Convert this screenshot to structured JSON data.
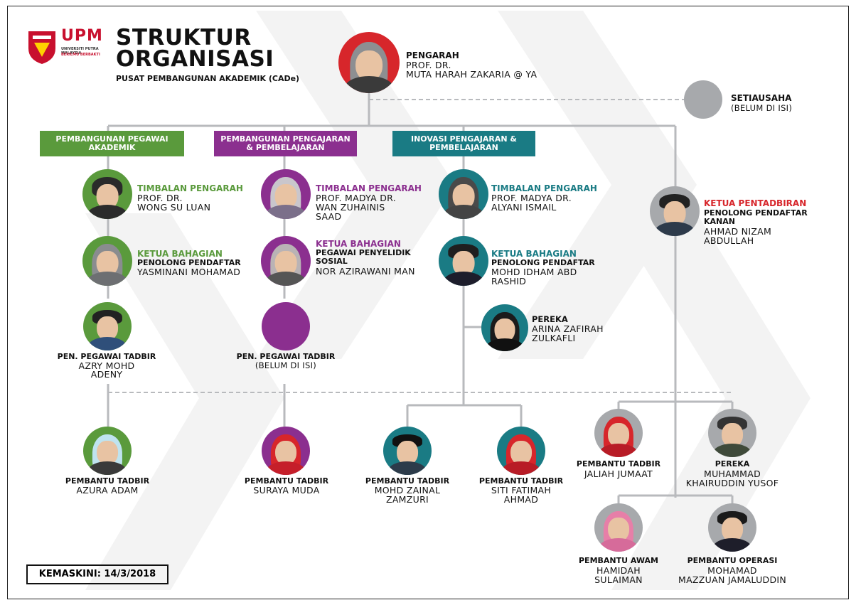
{
  "header": {
    "title_line1": "STRUKTUR",
    "title_line2": "ORGANISASI",
    "subtitle": "PUSAT PEMBANGUNAN AKADEMIK (CADe)",
    "logo_text": "UPM",
    "logo_sub1": "UNIVERSITI PUTRA MALAYSIA",
    "logo_sub2": "BERILMU BERBAKTI"
  },
  "colors": {
    "green": "#5a9a3c",
    "purple": "#8b2f8f",
    "teal": "#1a7b84",
    "red": "#d7262b",
    "grey": "#a7a9ac",
    "line": "#b8babd"
  },
  "director": {
    "role": "PENGARAH",
    "name1": "PROF. DR.",
    "name2": "MUTA HARAH ZAKARIA @ YA"
  },
  "secretary": {
    "role": "SETIAUSAHA",
    "name": "(BELUM DI ISI)"
  },
  "divisions": [
    {
      "header": "PEMBANGUNAN PEGAWAI AKADEMIK",
      "deputy": {
        "role": "TIMBALAN PENGARAH",
        "n1": "PROF. DR.",
        "n2": "WONG SU LUAN"
      },
      "head": {
        "role": "KETUA BAHAGIAN",
        "post": "PENOLONG PENDAFTAR",
        "n1": "YASMINANI MOHAMAD"
      },
      "officer": {
        "post": "PEN. PEGAWAI TADBIR",
        "n1": "AZRY MOHD",
        "n2": "ADENY"
      }
    },
    {
      "header": "PEMBANGUNAN PENGAJARAN & PEMBELAJARAN",
      "deputy": {
        "role": "TIMBALAN PENGARAH",
        "n1": "PROF. MADYA DR.",
        "n2": "WAN ZUHAINIS",
        "n3": "SAAD"
      },
      "head": {
        "role": "KETUA BAHAGIAN",
        "post1": "PEGAWAI PENYELIDIK",
        "post2": "SOSIAL",
        "n1": "NOR AZIRAWANI MAN"
      },
      "officer": {
        "post": "PEN. PEGAWAI TADBIR",
        "n1": "(BELUM DI ISI)"
      }
    },
    {
      "header": "INOVASI PENGAJARAN & PEMBELAJARAN",
      "deputy": {
        "role": "TIMBALAN PENGARAH",
        "n1": "PROF. MADYA DR.",
        "n2": "ALYANI ISMAIL"
      },
      "head": {
        "role": "KETUA BAHAGIAN",
        "post": "PENOLONG PENDAFTAR",
        "n1": "MOHD IDHAM ABD",
        "n2": "RASHID"
      },
      "designer": {
        "post": "PEREKA",
        "n1": "ARINA ZAFIRAH",
        "n2": "ZULKAFLI"
      }
    }
  ],
  "admin": {
    "role": "KETUA PENTADBIRAN",
    "post1": "PENOLONG PENDAFTAR",
    "post2": "KANAN",
    "n1": "AHMAD NIZAM",
    "n2": "ABDULLAH"
  },
  "staff": [
    {
      "post": "PEMBANTU TADBIR",
      "n1": "AZURA ADAM"
    },
    {
      "post": "PEMBANTU TADBIR",
      "n1": "SURAYA MUDA"
    },
    {
      "post": "PEMBANTU TADBIR",
      "n1": "MOHD ZAINAL",
      "n2": "ZAMZURI"
    },
    {
      "post": "PEMBANTU TADBIR",
      "n1": "SITI FATIMAH",
      "n2": "AHMAD"
    },
    {
      "post": "PEMBANTU TADBIR",
      "n1": "JALIAH JUMAAT"
    },
    {
      "post": "PEREKA",
      "n1": "MUHAMMAD",
      "n2": "KHAIRUDDIN YUSOF"
    },
    {
      "post": "PEMBANTU AWAM",
      "n1": "HAMIDAH",
      "n2": "SULAIMAN"
    },
    {
      "post": "PEMBANTU OPERASI",
      "n1": "MOHAMAD",
      "n2": "MAZZUAN JAMALUDDIN"
    }
  ],
  "footer": {
    "updated": "KEMASKINI: 14/3/2018"
  }
}
